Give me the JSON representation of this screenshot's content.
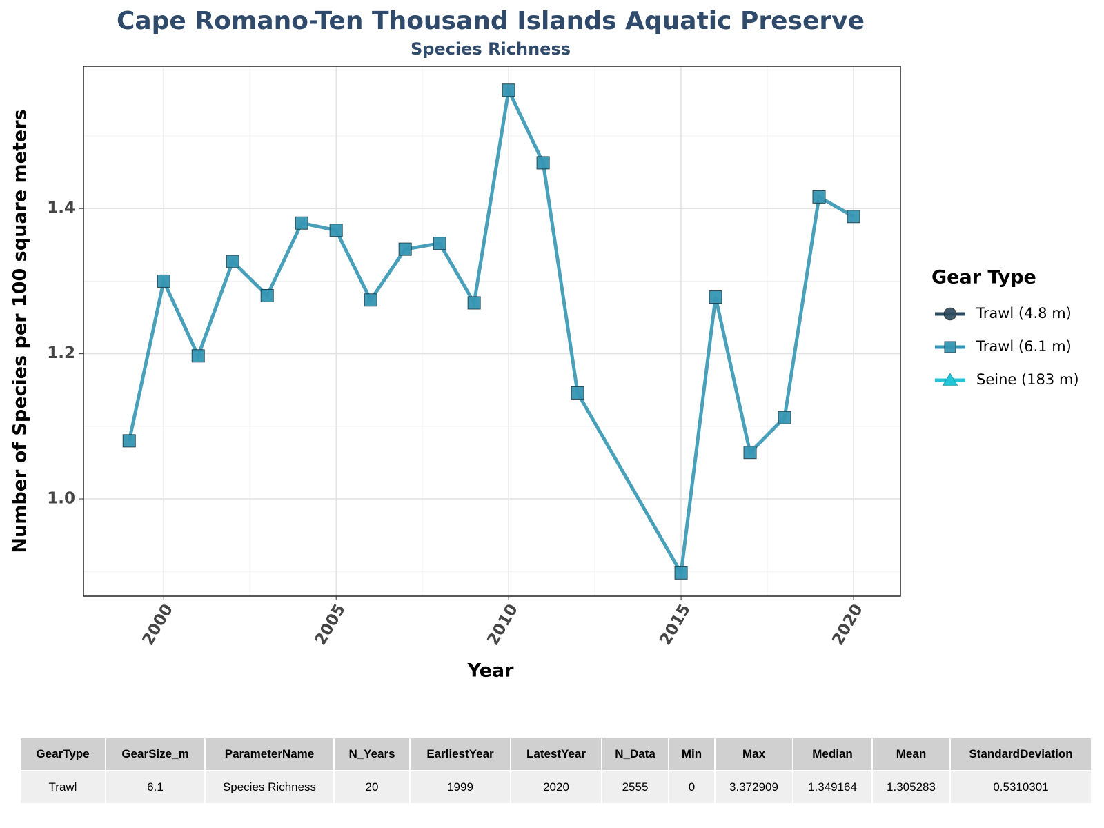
{
  "chart_data": {
    "type": "line",
    "title": "Cape Romano-Ten Thousand Islands Aquatic Preserve",
    "subtitle": "Species Richness",
    "x_label": "Year",
    "y_label": "Number of Species per 100 square meters",
    "x": [
      1999,
      2000,
      2001,
      2002,
      2003,
      2004,
      2005,
      2006,
      2007,
      2008,
      2009,
      2010,
      2011,
      2012,
      2015,
      2016,
      2017,
      2018,
      2019,
      2020
    ],
    "series": [
      {
        "name": "Trawl (4.8 m)",
        "color": "#2c4a5e",
        "marker": "circle"
      },
      {
        "name": "Trawl (6.1 m)",
        "color": "#3596b3",
        "marker": "square",
        "values": [
          1.08,
          1.3,
          1.197,
          1.327,
          1.28,
          1.38,
          1.37,
          1.274,
          1.344,
          1.352,
          1.27,
          1.563,
          1.463,
          1.146,
          0.898,
          1.278,
          1.064,
          1.112,
          1.416,
          1.389
        ]
      },
      {
        "name": "Seine (183 m)",
        "color": "#22c5d8",
        "marker": "triangle"
      }
    ],
    "xlim": [
      1997.675,
      2021.36
    ],
    "ylim": [
      0.866,
      1.596
    ],
    "xticks": [
      2000,
      2005,
      2010,
      2015,
      2020
    ],
    "yticks": [
      {
        "value": 1.0,
        "label": "1.0"
      },
      {
        "value": 1.2,
        "label": "1.2"
      },
      {
        "value": 1.4,
        "label": "1.4"
      }
    ],
    "grid": true,
    "legend_title": "Gear Type",
    "legend_position": "right"
  },
  "table": {
    "header": [
      "GearType",
      "GearSize_m",
      "ParameterName",
      "N_Years",
      "EarliestYear",
      "LatestYear",
      "N_Data",
      "Min",
      "Max",
      "Median",
      "Mean",
      "StandardDeviation"
    ],
    "rows": [
      [
        "Trawl",
        6.1,
        "Species Richness",
        20,
        1999,
        2020,
        2555,
        0,
        3.372909,
        1.349164,
        1.305283,
        0.5310301
      ]
    ]
  }
}
